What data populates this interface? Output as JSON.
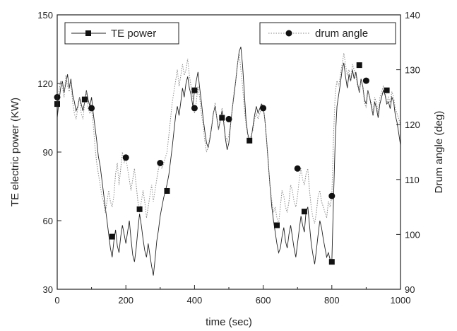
{
  "chart_data": {
    "type": "line",
    "xlabel": "time (sec)",
    "ylabel": "TE electric power (KW)",
    "y2label": "Drum angle (deg)",
    "xlim": [
      0,
      1000
    ],
    "ylim": [
      30,
      150
    ],
    "y2lim": [
      90,
      140
    ],
    "x_ticks": [
      0,
      200,
      400,
      600,
      800,
      1000
    ],
    "y_ticks": [
      30,
      60,
      90,
      120,
      150
    ],
    "y2_ticks": [
      90,
      100,
      110,
      120,
      130,
      140
    ],
    "grid": false,
    "legend": [
      {
        "name": "TE power",
        "placement": "top-left"
      },
      {
        "name": "drum angle",
        "placement": "top-right"
      }
    ],
    "series": [
      {
        "name": "TE power",
        "axis": "left",
        "color": "#222222",
        "line_style": "solid",
        "marker": "square",
        "x": [
          0,
          5,
          10,
          15,
          20,
          25,
          30,
          35,
          40,
          45,
          50,
          55,
          60,
          65,
          70,
          75,
          80,
          85,
          90,
          95,
          100,
          105,
          110,
          115,
          120,
          125,
          130,
          135,
          140,
          145,
          150,
          155,
          160,
          165,
          170,
          175,
          180,
          185,
          190,
          195,
          200,
          205,
          210,
          215,
          220,
          225,
          230,
          235,
          240,
          245,
          250,
          255,
          260,
          265,
          270,
          275,
          280,
          285,
          290,
          295,
          300,
          305,
          310,
          315,
          320,
          325,
          330,
          335,
          340,
          345,
          350,
          355,
          360,
          365,
          370,
          375,
          380,
          385,
          390,
          395,
          400,
          405,
          410,
          415,
          420,
          425,
          430,
          435,
          440,
          445,
          450,
          455,
          460,
          465,
          470,
          475,
          480,
          485,
          490,
          495,
          500,
          505,
          510,
          515,
          520,
          525,
          530,
          535,
          540,
          545,
          550,
          555,
          560,
          565,
          570,
          575,
          580,
          585,
          590,
          595,
          600,
          605,
          610,
          615,
          620,
          625,
          630,
          635,
          640,
          645,
          650,
          655,
          660,
          665,
          670,
          675,
          680,
          685,
          690,
          695,
          700,
          705,
          710,
          715,
          720,
          725,
          730,
          735,
          740,
          745,
          750,
          755,
          760,
          765,
          770,
          775,
          780,
          785,
          790,
          795,
          800,
          805,
          810,
          815,
          820,
          825,
          830,
          835,
          840,
          845,
          850,
          855,
          860,
          865,
          870,
          875,
          880,
          885,
          890,
          895,
          900,
          905,
          910,
          915,
          920,
          925,
          930,
          935,
          940,
          945,
          950,
          955,
          960,
          965,
          970,
          975,
          980,
          985,
          990,
          995,
          1000
        ],
        "y": [
          105,
          112,
          118,
          121,
          116,
          120,
          124,
          118,
          122,
          115,
          112,
          108,
          110,
          114,
          111,
          108,
          112,
          117,
          113,
          110,
          114,
          107,
          101,
          95,
          88,
          84,
          78,
          72,
          66,
          60,
          54,
          48,
          44,
          51,
          56,
          49,
          46,
          53,
          58,
          54,
          50,
          55,
          60,
          52,
          45,
          42,
          48,
          56,
          63,
          58,
          52,
          47,
          44,
          50,
          45,
          40,
          36,
          43,
          51,
          56,
          62,
          66,
          70,
          73,
          76,
          80,
          86,
          92,
          99,
          106,
          110,
          106,
          112,
          118,
          114,
          120,
          123,
          118,
          115,
          110,
          117,
          121,
          125,
          118,
          112,
          105,
          99,
          94,
          92,
          96,
          101,
          107,
          110,
          105,
          100,
          104,
          108,
          103,
          96,
          91,
          94,
          102,
          109,
          115,
          121,
          128,
          134,
          136,
          128,
          116,
          104,
          98,
          95,
          96,
          101,
          106,
          110,
          107,
          109,
          111,
          110,
          104,
          95,
          85,
          75,
          66,
          60,
          55,
          50,
          46,
          48,
          53,
          57,
          51,
          48,
          54,
          58,
          53,
          48,
          44,
          50,
          56,
          62,
          58,
          55,
          64,
          66,
          58,
          50,
          45,
          41,
          47,
          54,
          60,
          57,
          52,
          48,
          44,
          46,
          43,
          42,
          70,
          96,
          110,
          115,
          120,
          126,
          129,
          123,
          118,
          124,
          121,
          126,
          122,
          125,
          120,
          116,
          122,
          119,
          113,
          111,
          117,
          114,
          110,
          106,
          112,
          109,
          105,
          111,
          114,
          117,
          115,
          111,
          112,
          109,
          114,
          112,
          106,
          103,
          98,
          93
        ],
        "markers_x": [
          0,
          80,
          160,
          240,
          320,
          400,
          480,
          560,
          640,
          720,
          800,
          880,
          960
        ],
        "markers_y": [
          111,
          113,
          53,
          65,
          73,
          117,
          105,
          95,
          58,
          64,
          42,
          128,
          117
        ]
      },
      {
        "name": "drum angle",
        "axis": "right",
        "color": "#888888",
        "line_style": "dotted",
        "marker": "circle",
        "x": [
          0,
          5,
          10,
          15,
          20,
          25,
          30,
          35,
          40,
          45,
          50,
          55,
          60,
          65,
          70,
          75,
          80,
          85,
          90,
          95,
          100,
          105,
          110,
          115,
          120,
          125,
          130,
          135,
          140,
          145,
          150,
          155,
          160,
          165,
          170,
          175,
          180,
          185,
          190,
          195,
          200,
          205,
          210,
          215,
          220,
          225,
          230,
          235,
          240,
          245,
          250,
          255,
          260,
          265,
          270,
          275,
          280,
          285,
          290,
          295,
          300,
          305,
          310,
          315,
          320,
          325,
          330,
          335,
          340,
          345,
          350,
          355,
          360,
          365,
          370,
          375,
          380,
          385,
          390,
          395,
          400,
          405,
          410,
          415,
          420,
          425,
          430,
          435,
          440,
          445,
          450,
          455,
          460,
          465,
          470,
          475,
          480,
          485,
          490,
          495,
          500,
          505,
          510,
          515,
          520,
          525,
          530,
          535,
          540,
          545,
          550,
          555,
          560,
          565,
          570,
          575,
          580,
          585,
          590,
          595,
          600,
          605,
          610,
          615,
          620,
          625,
          630,
          635,
          640,
          645,
          650,
          655,
          660,
          665,
          670,
          675,
          680,
          685,
          690,
          695,
          700,
          705,
          710,
          715,
          720,
          725,
          730,
          735,
          740,
          745,
          750,
          755,
          760,
          765,
          770,
          775,
          780,
          785,
          790,
          795,
          800,
          805,
          810,
          815,
          820,
          825,
          830,
          835,
          840,
          845,
          850,
          855,
          860,
          865,
          870,
          875,
          880,
          885,
          890,
          895,
          900,
          905,
          910,
          915,
          920,
          925,
          930,
          935,
          940,
          945,
          950,
          955,
          960,
          965,
          970,
          975,
          980,
          985,
          990,
          995,
          1000
        ],
        "y": [
          123,
          126,
          128,
          127,
          125,
          129,
          127,
          126,
          128,
          124,
          122,
          121,
          123,
          125,
          122,
          121,
          124,
          126,
          123,
          122,
          123,
          120,
          116,
          113,
          111,
          109,
          107,
          106,
          104,
          106,
          108,
          106,
          105,
          107,
          111,
          113,
          109,
          112,
          115,
          113,
          114,
          112,
          110,
          108,
          110,
          112,
          109,
          106,
          104,
          106,
          108,
          106,
          103,
          105,
          107,
          109,
          106,
          108,
          110,
          112,
          113,
          112,
          113,
          114,
          115,
          118,
          121,
          124,
          126,
          128,
          130,
          127,
          129,
          131,
          129,
          130,
          132,
          129,
          127,
          125,
          122,
          124,
          127,
          125,
          122,
          120,
          117,
          115,
          116,
          118,
          120,
          122,
          124,
          121,
          119,
          121,
          123,
          121,
          118,
          117,
          118,
          120,
          123,
          126,
          128,
          131,
          133,
          130,
          127,
          123,
          120,
          118,
          117,
          118,
          119,
          121,
          122,
          121,
          122,
          123,
          123,
          121,
          117,
          113,
          109,
          106,
          104,
          105,
          103,
          102,
          105,
          108,
          107,
          105,
          104,
          106,
          109,
          108,
          106,
          105,
          107,
          110,
          112,
          110,
          109,
          111,
          112,
          108,
          105,
          103,
          102,
          104,
          107,
          108,
          106,
          105,
          104,
          103,
          106,
          105,
          107,
          118,
          126,
          128,
          127,
          129,
          131,
          133,
          131,
          129,
          130,
          128,
          131,
          130,
          129,
          127,
          126,
          128,
          127,
          124,
          123,
          126,
          125,
          124,
          122,
          125,
          124,
          122,
          125,
          126,
          127,
          126,
          124,
          125,
          124,
          126,
          125,
          123,
          122,
          121,
          120
        ],
        "markers_x": [
          0,
          100,
          200,
          300,
          400,
          500,
          600,
          700,
          800,
          900
        ],
        "markers_y": [
          125,
          123,
          114,
          113,
          123,
          121,
          123,
          112,
          107,
          128
        ]
      }
    ]
  }
}
